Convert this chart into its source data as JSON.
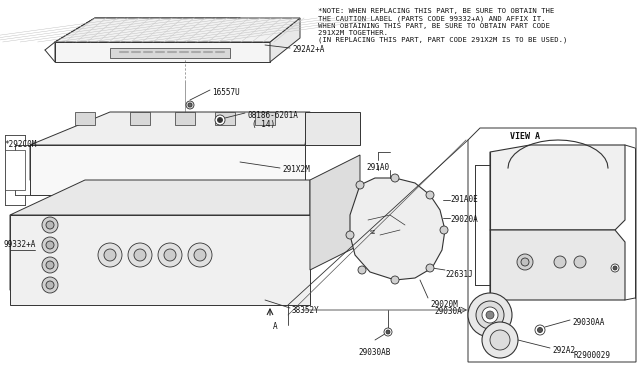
{
  "bg_color": "#ffffff",
  "line_color": "#333333",
  "text_color": "#111111",
  "note_text": "*NOTE: WHEN REPLACING THIS PART, BE SURE TO OBTAIN THE\nTHE CAUTION LABEL (PARTS CODE 99332+A) AND AFFIX IT.\nWHEN OBTAINING THIS PART, BE SURE TO OBTAIN PART CODE\n291X2M TOGETHER.\n(IN REPLACING THIS PART, PART CODE 291X2M IS TO BE USED.)",
  "view_a_label": "VIEW A",
  "ref_label": "R2900029",
  "fs": 5.5
}
